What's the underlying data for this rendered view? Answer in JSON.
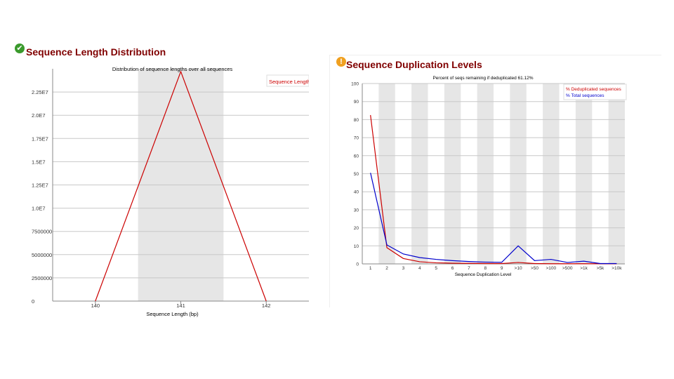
{
  "panels": [
    {
      "title": "Sequence Length Distribution",
      "status_icon": "pass-check-icon",
      "status_color": "#3a9a2c"
    },
    {
      "title": "Sequence Duplication Levels",
      "status_icon": "warning-exclamation-icon",
      "status_color": "#f0a020"
    }
  ],
  "chart_data": [
    {
      "type": "line",
      "title": "Distribution of sequence lengths over all sequences",
      "xlabel": "Sequence Length (bp)",
      "ylabel": "",
      "categories": [
        "140",
        "141",
        "142"
      ],
      "x": [
        139.5,
        140,
        141,
        142,
        142.5
      ],
      "ylim": [
        0,
        25000000
      ],
      "yticks": [
        "0",
        "2500000",
        "5000000",
        "7500000",
        "1.0E7",
        "1.25E7",
        "1.5E7",
        "1.75E7",
        "2.0E7",
        "2.25E7"
      ],
      "series": [
        {
          "name": "Sequence Length",
          "color": "#cc0000",
          "values": [
            0,
            24700000,
            0
          ]
        }
      ],
      "shaded_bands": [
        [
          140.5,
          141.5
        ]
      ],
      "grid": true,
      "legend": "top-right"
    },
    {
      "type": "line",
      "title": "Percent of seqs remaining if deduplicated 61.12%",
      "xlabel": "Sequence Duplication Level",
      "ylabel": "",
      "categories": [
        "1",
        "2",
        "3",
        "4",
        "5",
        "6",
        "7",
        "8",
        "9",
        ">10",
        ">50",
        ">100",
        ">500",
        ">1k",
        ">5k",
        ">10k"
      ],
      "ylim": [
        0,
        100
      ],
      "yticks": [
        "0",
        "10",
        "20",
        "30",
        "40",
        "50",
        "60",
        "70",
        "80",
        "90",
        "100"
      ],
      "series": [
        {
          "name": "% Deduplicated sequences",
          "color": "#cc0000",
          "values": [
            82.5,
            9.0,
            3.0,
            1.2,
            0.6,
            0.4,
            0.3,
            0.2,
            0.2,
            0.8,
            0.2,
            0.1,
            0.1,
            0.1,
            0.1,
            0.1
          ]
        },
        {
          "name": "% Total sequences",
          "color": "#0000cc",
          "values": [
            50.5,
            10.5,
            5.5,
            3.5,
            2.5,
            1.8,
            1.3,
            1.0,
            0.9,
            10.0,
            1.8,
            2.5,
            0.8,
            1.5,
            0.2,
            0.2
          ]
        }
      ],
      "shaded_bands": "alternate",
      "grid": true,
      "legend": "top-right"
    }
  ]
}
